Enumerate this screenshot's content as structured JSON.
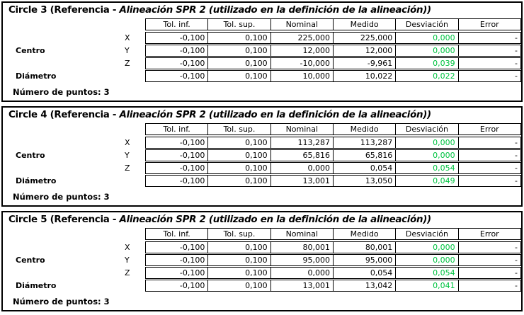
{
  "report": {
    "pass_color": "#00C341",
    "columns": [
      "Tol. inf.",
      "Tol. sup.",
      "Nominal",
      "Medido",
      "Desviación",
      "Error"
    ],
    "blocks": [
      {
        "title_prefix": "Circle 3 (Referencia - ",
        "title_emphasis": "Alineación SPR 2 (utilizado en la definición de la alineación))",
        "points_label": "Número de puntos: 3",
        "rows": [
          {
            "group": "",
            "axis": "X",
            "tol_inf": "-0,100",
            "tol_sup": "0,100",
            "nominal": "225,000",
            "medido": "225,000",
            "desviacion": "0,000",
            "error": "-"
          },
          {
            "group": "Centro",
            "axis": "Y",
            "tol_inf": "-0,100",
            "tol_sup": "0,100",
            "nominal": "12,000",
            "medido": "12,000",
            "desviacion": "0,000",
            "error": "-"
          },
          {
            "group": "",
            "axis": "Z",
            "tol_inf": "-0,100",
            "tol_sup": "0,100",
            "nominal": "-10,000",
            "medido": "-9,961",
            "desviacion": "0,039",
            "error": "-"
          },
          {
            "group": "Diámetro",
            "axis": "",
            "tol_inf": "-0,100",
            "tol_sup": "0,100",
            "nominal": "10,000",
            "medido": "10,022",
            "desviacion": "0,022",
            "error": "-"
          }
        ]
      },
      {
        "title_prefix": "Circle 4 (Referencia - ",
        "title_emphasis": "Alineación SPR 2 (utilizado en la definición de la alineación))",
        "points_label": "Número de puntos: 3",
        "rows": [
          {
            "group": "",
            "axis": "X",
            "tol_inf": "-0,100",
            "tol_sup": "0,100",
            "nominal": "113,287",
            "medido": "113,287",
            "desviacion": "0,000",
            "error": "-"
          },
          {
            "group": "Centro",
            "axis": "Y",
            "tol_inf": "-0,100",
            "tol_sup": "0,100",
            "nominal": "65,816",
            "medido": "65,816",
            "desviacion": "0,000",
            "error": "-"
          },
          {
            "group": "",
            "axis": "Z",
            "tol_inf": "-0,100",
            "tol_sup": "0,100",
            "nominal": "0,000",
            "medido": "0,054",
            "desviacion": "0,054",
            "error": "-"
          },
          {
            "group": "Diámetro",
            "axis": "",
            "tol_inf": "-0,100",
            "tol_sup": "0,100",
            "nominal": "13,001",
            "medido": "13,050",
            "desviacion": "0,049",
            "error": "-"
          }
        ]
      },
      {
        "title_prefix": "Circle 5 (Referencia - ",
        "title_emphasis": "Alineación SPR 2 (utilizado en la definición de la alineación))",
        "points_label": "Número de puntos: 3",
        "rows": [
          {
            "group": "",
            "axis": "X",
            "tol_inf": "-0,100",
            "tol_sup": "0,100",
            "nominal": "80,001",
            "medido": "80,001",
            "desviacion": "0,000",
            "error": "-"
          },
          {
            "group": "Centro",
            "axis": "Y",
            "tol_inf": "-0,100",
            "tol_sup": "0,100",
            "nominal": "95,000",
            "medido": "95,000",
            "desviacion": "0,000",
            "error": "-"
          },
          {
            "group": "",
            "axis": "Z",
            "tol_inf": "-0,100",
            "tol_sup": "0,100",
            "nominal": "0,000",
            "medido": "0,054",
            "desviacion": "0,054",
            "error": "-"
          },
          {
            "group": "Diámetro",
            "axis": "",
            "tol_inf": "-0,100",
            "tol_sup": "0,100",
            "nominal": "13,001",
            "medido": "13,042",
            "desviacion": "0,041",
            "error": "-"
          }
        ]
      }
    ]
  }
}
